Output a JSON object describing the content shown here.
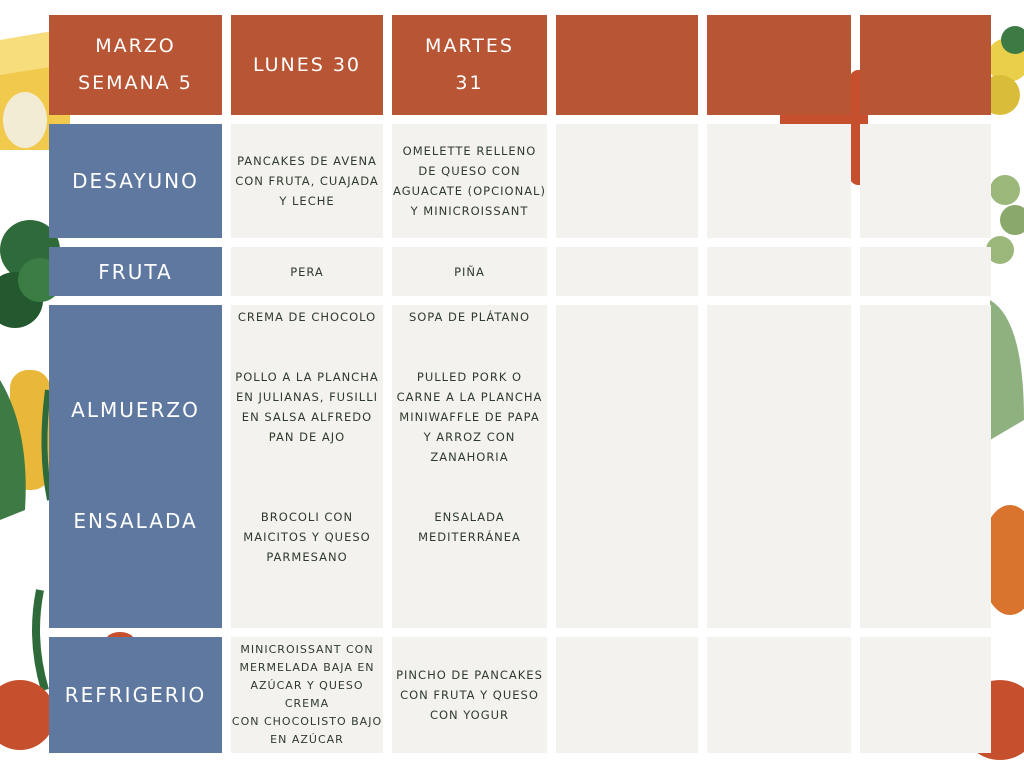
{
  "header": {
    "month_week": "MARZO\nSEMANA 5",
    "day1": "LUNES 30",
    "day2": "MARTES\n31",
    "day3": "",
    "day4": "",
    "day5": ""
  },
  "rows": {
    "desayuno": {
      "label": "DESAYUNO",
      "day1": "PANCAKES DE AVENA\nCON FRUTA, CUAJADA\nY LECHE",
      "day2": "OMELETTE RELLENO\nDE QUESO CON\nAGUACATE (OPCIONAL)\nY MINICROISSANT"
    },
    "fruta": {
      "label": "FRUTA",
      "day1": "PERA",
      "day2": "PIÑA"
    },
    "almuerzo": {
      "label": "ALMUERZO",
      "ensalada_label": "ENSALADA",
      "day1_soup": "CREMA DE CHOCOLO",
      "day1_main": "POLLO A LA PLANCHA\nEN JULIANAS, FUSILLI\nEN SALSA ALFREDO\nPAN DE AJO",
      "day1_salad": "BROCOLI CON\nMAICITOS Y QUESO\nPARMESANO",
      "day2_soup": "SOPA DE PLÁTANO",
      "day2_main": "PULLED PORK O\nCARNE A LA PLANCHA\nMINIWAFFLE DE PAPA\nY ARROZ CON\nZANAHORIA",
      "day2_salad": "ENSALADA\nMEDITERRÁNEA"
    },
    "refrigerio": {
      "label": "REFRIGERIO",
      "day1": "MINICROISSANT CON\nMERMELADA BAJA EN\nAZÚCAR Y QUESO CREMA\nCON CHOCOLISTO BAJO\nEN AZÚCAR",
      "day2": "PINCHO DE PANCAKES\nCON FRUTA Y QUESO\nCON YOGUR"
    }
  },
  "colors": {
    "header": "#b85535",
    "label": "#5e789f",
    "cell": "#f4f2ee",
    "cell_text": "#2d3b2d"
  }
}
